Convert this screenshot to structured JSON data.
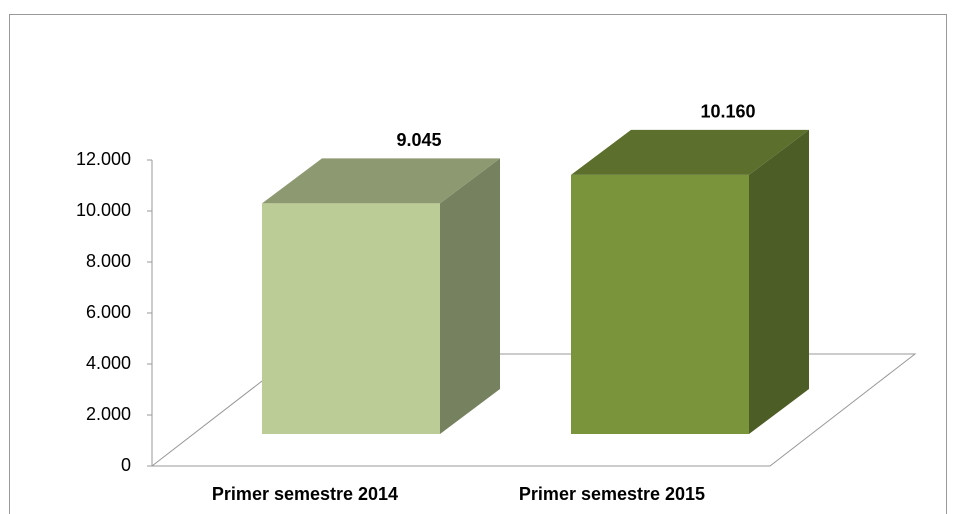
{
  "chart_data": {
    "type": "bar3d",
    "categories": [
      "Primer semestre 2014",
      "Primer semestre 2015"
    ],
    "values": [
      9045,
      10160
    ],
    "value_labels": [
      "9.045",
      "10.160"
    ],
    "colors": [
      "#bccc96",
      "#7a943c"
    ],
    "ylim": [
      0,
      12000
    ],
    "yticks": [
      0,
      {
        "value": 2000,
        "label": "2.000"
      },
      {
        "value": 4000,
        "label": "4.000"
      },
      {
        "value": 6000,
        "label": "6.000"
      },
      {
        "value": 8000,
        "label": "8.000"
      },
      {
        "value": 10000,
        "label": "10.000"
      },
      {
        "value": 12000,
        "label": "12.000"
      }
    ]
  }
}
